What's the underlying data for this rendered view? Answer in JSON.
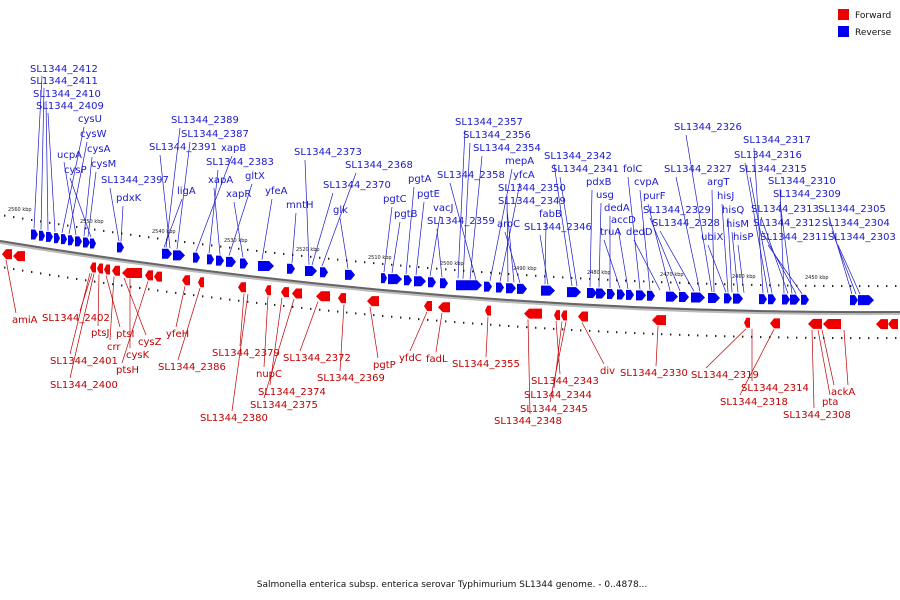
{
  "caption": "Salmonella enterica subsp. enterica serovar Typhimurium SL1344 genome. - 0..4878...",
  "legend": [
    {
      "label": "Forward",
      "color": "#ee0000"
    },
    {
      "label": "Reverse",
      "color": "#0000ee"
    }
  ],
  "colors": {
    "forward": "#ee0000",
    "reverse": "#0000ee",
    "backbone": "#777777"
  },
  "kbp_labels": [
    "2560 kbp",
    "2550 kbp",
    "2540 kbp",
    "2530 kbp",
    "2520 kbp",
    "2510 kbp",
    "2500 kbp",
    "2490 kbp",
    "2480 kbp",
    "2470 kbp",
    "2460 kbp",
    "2450 kbp"
  ],
  "reverse_labels": [
    "SL1344_2412",
    "SL1344_2411",
    "SL1344_2410",
    "SL1344_2409",
    "cysU",
    "cysW",
    "ucpA",
    "cysA",
    "cysP",
    "cysM",
    "SL1344_2397",
    "pdxK",
    "SL1344_2389",
    "SL1344_2387",
    "SL1344_2391",
    "xapB",
    "SL1344_2383",
    "ligA",
    "xapA",
    "gltX",
    "xapR",
    "yfeA",
    "mntH",
    "SL1344_2373",
    "SL1344_2368",
    "SL1344_2370",
    "glk",
    "pgtC",
    "pgtB",
    "pgtA",
    "pgtE",
    "vacJ",
    "SL1344_2359",
    "SL1344_2357",
    "SL1344_2356",
    "SL1344_2354",
    "mepA",
    "SL1344_2358",
    "yfcA",
    "SL1344_2350",
    "SL1344_2349",
    "aroC",
    "fabB",
    "SL1344_2346",
    "SL1344_2342",
    "SL1344_2341",
    "pdxB",
    "usg",
    "dedA",
    "truA",
    "accD",
    "folC",
    "cvpA",
    "dedD",
    "purF",
    "SL1344_2329",
    "SL1344_2328",
    "SL1344_2326",
    "SL1344_2327",
    "argT",
    "ubiX",
    "hisJ",
    "hisQ",
    "hisM",
    "hisP",
    "SL1344_2317",
    "SL1344_2316",
    "SL1344_2315",
    "SL1344_2310",
    "SL1344_2313",
    "SL1344_2309",
    "SL1344_2312",
    "SL1344_2311",
    "SL1344_2305",
    "SL1344_2304",
    "SL1344_2303"
  ],
  "forward_labels": [
    "amiA",
    "SL1344_2402",
    "ptsJ",
    "ptsI",
    "crr",
    "cysZ",
    "cysK",
    "ptsH",
    "SL1344_2401",
    "SL1344_2400",
    "yfeH",
    "SL1344_2386",
    "SL1344_2379",
    "nupC",
    "SL1344_2374",
    "SL1344_2375",
    "SL1344_2380",
    "SL1344_2372",
    "SL1344_2369",
    "pgtP",
    "yfdC",
    "fadL",
    "SL1344_2355",
    "SL1344_2343",
    "SL1344_2344",
    "SL1344_2345",
    "SL1344_2348",
    "div",
    "SL1344_2330",
    "SL1344_2319",
    "SL1344_2314",
    "SL1344_2318",
    "ackA",
    "pta",
    "SL1344_2308"
  ]
}
